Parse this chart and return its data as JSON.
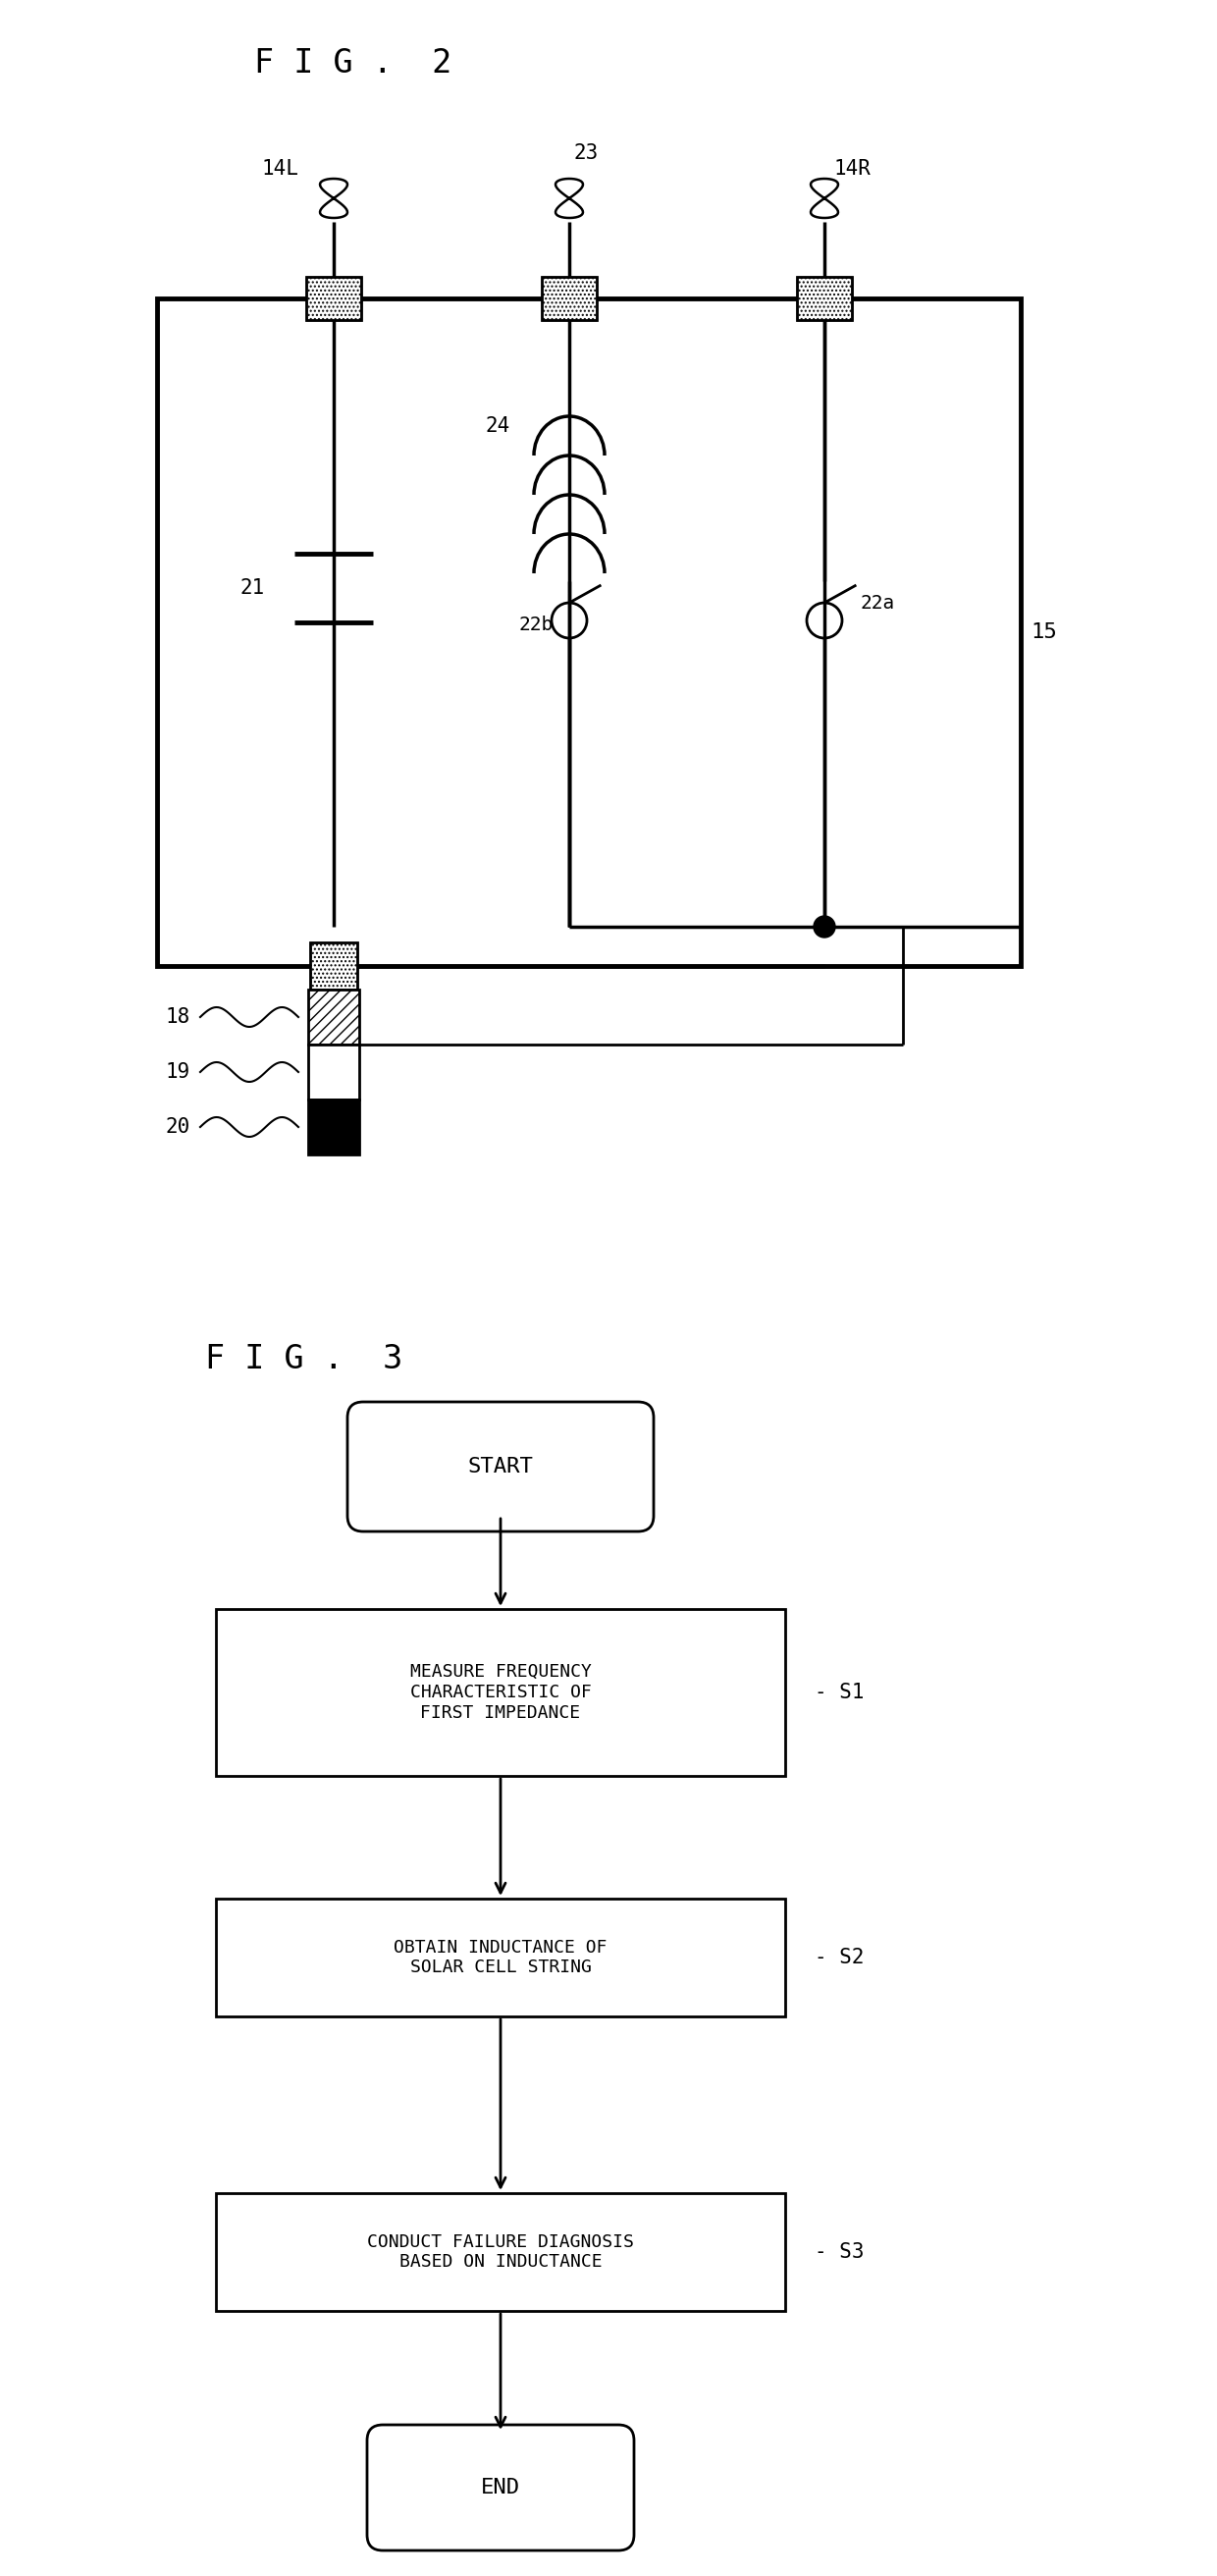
{
  "fig2_title": "F I G .  2",
  "fig3_title": "F I G .  3",
  "background_color": "#ffffff",
  "line_color": "#000000",
  "label_14L": "14L",
  "label_14R": "14R",
  "label_23": "23",
  "label_15": "15",
  "label_21": "21",
  "label_24": "24",
  "label_22a": "22a",
  "label_22b": "22b",
  "label_18": "18",
  "label_19": "19",
  "label_20": "20",
  "flowchart_nodes": [
    "START",
    "MEASURE FREQUENCY\nCHARACTERISTIC OF\nFIRST IMPEDANCE",
    "OBTAIN INDUCTANCE OF\nSOLAR CELL STRING",
    "CONDUCT FAILURE DIAGNOSIS\nBASED ON INDUCTANCE",
    "END"
  ],
  "flowchart_labels": [
    "S1",
    "S2",
    "S3"
  ]
}
